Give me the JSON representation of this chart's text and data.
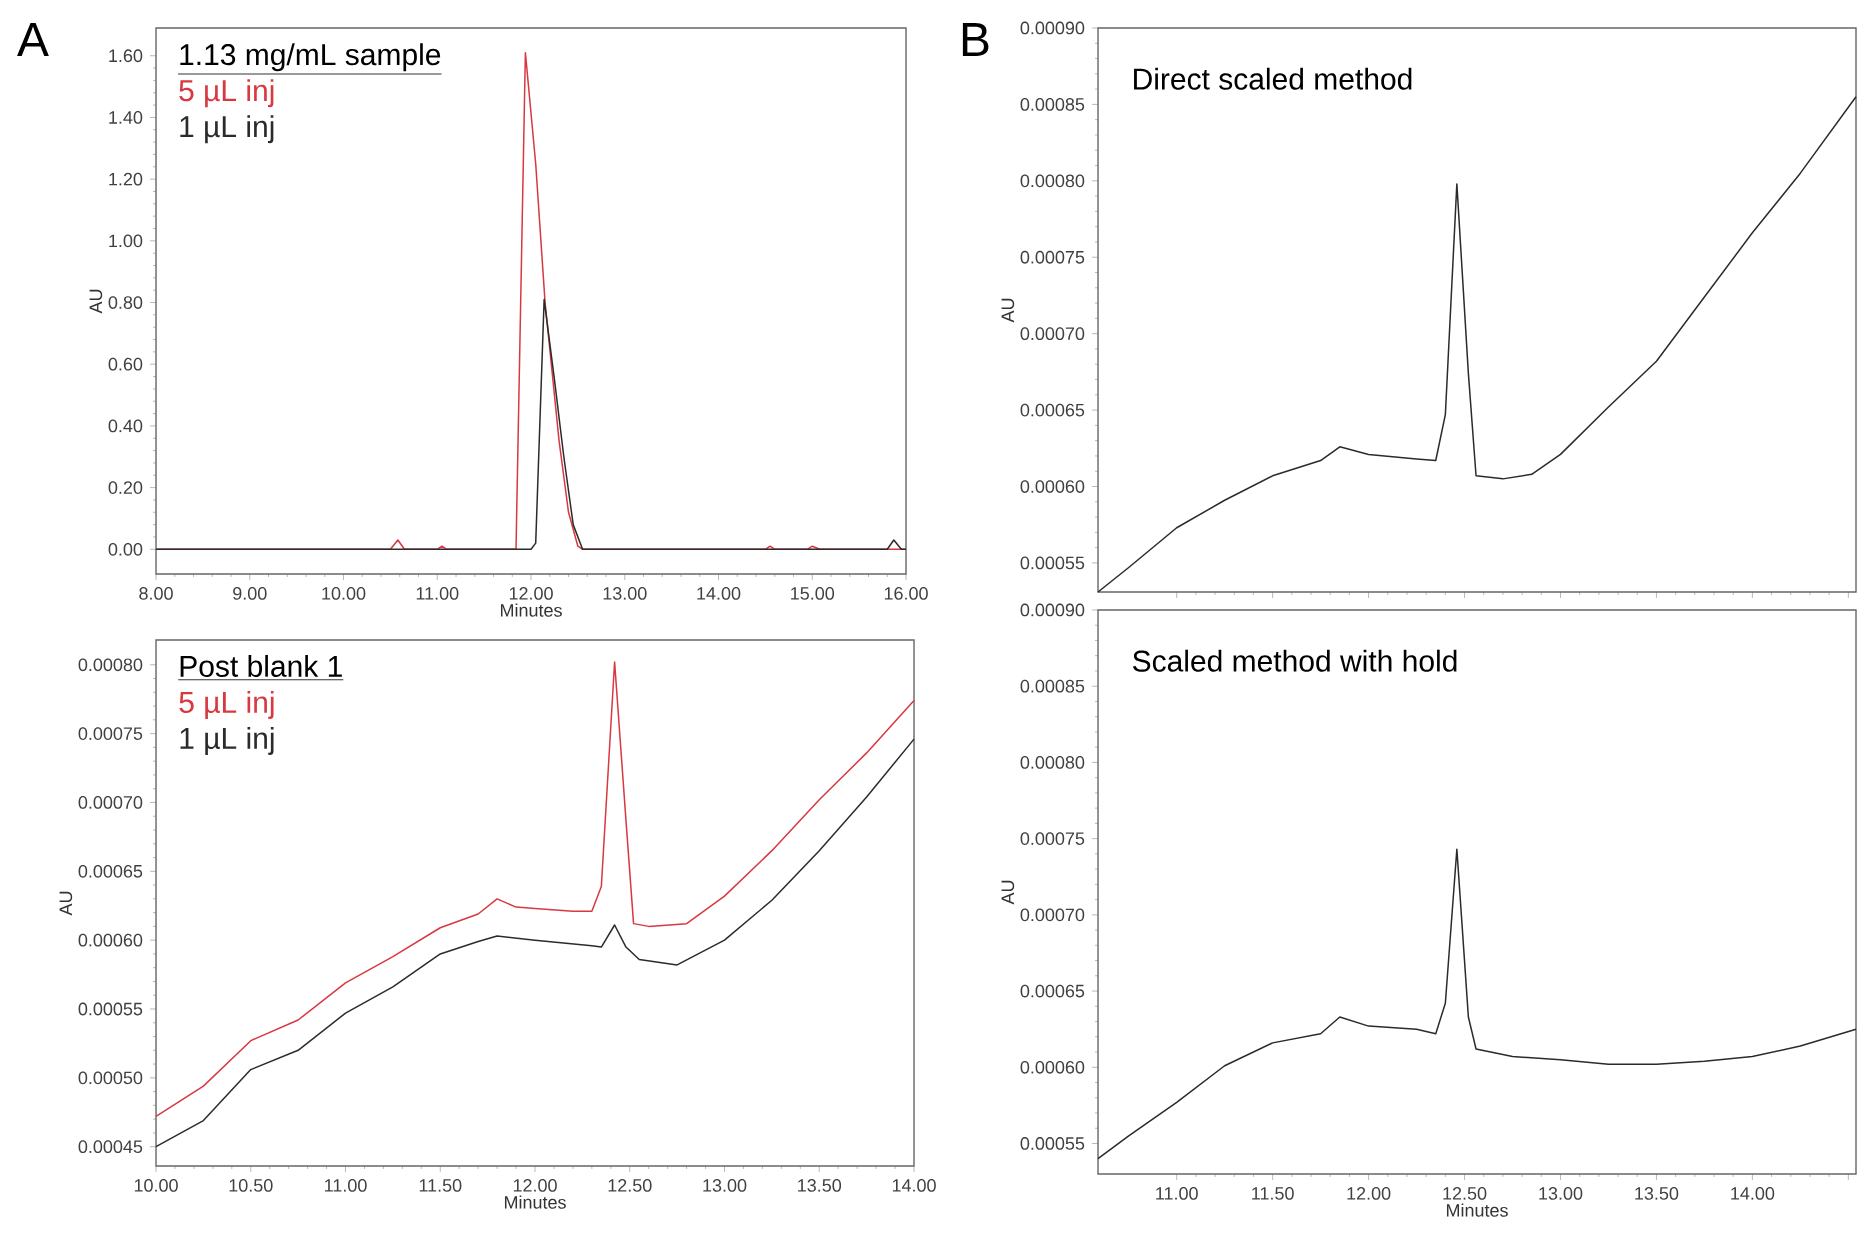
{
  "chart_data": [
    {
      "type": "line",
      "ylabel": "AU",
      "xlabel": "Minutes",
      "legend_title": "1.13 mg/mL sample",
      "annotations": [
        "A"
      ],
      "xlim": [
        8,
        16
      ],
      "ylim": [
        -0.08,
        1.69
      ],
      "xticks": [
        {
          "value": 8,
          "label": "8.00"
        },
        {
          "value": 9,
          "label": "9.00"
        },
        {
          "value": 10,
          "label": "10.00"
        },
        {
          "value": 11,
          "label": "11.00"
        },
        {
          "value": 12,
          "label": "12.00"
        },
        {
          "value": 13,
          "label": "13.00"
        },
        {
          "value": 14,
          "label": "14.00"
        },
        {
          "value": 15,
          "label": "15.00"
        },
        {
          "value": 16,
          "label": "16.00"
        }
      ],
      "yticks": [
        {
          "value": 0,
          "label": "0.00"
        },
        {
          "value": 0.2,
          "label": "0.20"
        },
        {
          "value": 0.4,
          "label": "0.40"
        },
        {
          "value": 0.6,
          "label": "0.60"
        },
        {
          "value": 0.8,
          "label": "0.80"
        },
        {
          "value": 1.0,
          "label": "1.00"
        },
        {
          "value": 1.2,
          "label": "1.20"
        },
        {
          "value": 1.4,
          "label": "1.40"
        },
        {
          "value": 1.6,
          "label": "1.60"
        }
      ],
      "series": [
        {
          "name": "5 µL inj",
          "color": "#d8383f",
          "x": [
            8,
            10.5,
            10.58,
            10.65,
            11.0,
            11.05,
            11.1,
            11.84,
            11.94,
            12.05,
            12.15,
            12.3,
            12.4,
            12.5,
            12.55,
            14.5,
            14.55,
            14.6,
            14.95,
            15.0,
            15.08,
            16
          ],
          "values": [
            0,
            0,
            0.03,
            0,
            0,
            0.01,
            0,
            0,
            1.61,
            1.25,
            0.8,
            0.35,
            0.12,
            0.01,
            0,
            0,
            0.01,
            0,
            0,
            0.01,
            0,
            0
          ]
        },
        {
          "name": "1 µL inj",
          "color": "#2b2b2b",
          "x": [
            8,
            12.0,
            12.05,
            12.14,
            12.25,
            12.35,
            12.45,
            12.55,
            15.8,
            15.87,
            15.95,
            16
          ],
          "values": [
            0,
            0,
            0.02,
            0.81,
            0.55,
            0.3,
            0.08,
            0,
            0,
            0.03,
            0,
            0
          ]
        }
      ]
    },
    {
      "type": "line",
      "title": "Direct scaled method",
      "ylabel": "AU",
      "annotations": [
        "B"
      ],
      "tick_labels": "y",
      "xlim": [
        10.59,
        14.54
      ],
      "ylim": [
        0.000531,
        0.0009
      ],
      "xticks": [
        11,
        11.5,
        12,
        12.5,
        13,
        13.5,
        14,
        14.5
      ],
      "yticks": [
        {
          "value": 0.00055,
          "label": "0.00055"
        },
        {
          "value": 0.0006,
          "label": "0.00060"
        },
        {
          "value": 0.00065,
          "label": "0.00065"
        },
        {
          "value": 0.0007,
          "label": "0.00070"
        },
        {
          "value": 0.00075,
          "label": "0.00075"
        },
        {
          "value": 0.0008,
          "label": "0.00080"
        },
        {
          "value": 0.00085,
          "label": "0.00085"
        },
        {
          "value": 0.0009,
          "label": "0.00090"
        }
      ],
      "series": [
        {
          "color": "#2b2b2b",
          "x": [
            10.59,
            10.75,
            11.0,
            11.25,
            11.5,
            11.75,
            11.85,
            12.0,
            12.25,
            12.35,
            12.4,
            12.46,
            12.52,
            12.56,
            12.7,
            12.85,
            13.0,
            13.25,
            13.5,
            13.75,
            14.0,
            14.25,
            14.54
          ],
          "values": [
            0.000531,
            0.000547,
            0.000573,
            0.000591,
            0.000607,
            0.000617,
            0.000626,
            0.000621,
            0.000618,
            0.000617,
            0.000647,
            0.000798,
            0.000674,
            0.000607,
            0.000605,
            0.000608,
            0.000621,
            0.000652,
            0.000682,
            0.000724,
            0.000766,
            0.000805,
            0.000855
          ]
        }
      ]
    },
    {
      "type": "line",
      "ylabel": "AU",
      "xlabel": "Minutes",
      "legend_title": "Post blank 1",
      "xlim": [
        10,
        14
      ],
      "ylim": [
        0.000436,
        0.000818
      ],
      "xticks": [
        {
          "value": 10,
          "label": "10.00"
        },
        {
          "value": 10.5,
          "label": "10.50"
        },
        {
          "value": 11,
          "label": "11.00"
        },
        {
          "value": 11.5,
          "label": "11.50"
        },
        {
          "value": 12,
          "label": "12.00"
        },
        {
          "value": 12.5,
          "label": "12.50"
        },
        {
          "value": 13,
          "label": "13.00"
        },
        {
          "value": 13.5,
          "label": "13.50"
        },
        {
          "value": 14,
          "label": "14.00"
        }
      ],
      "yticks": [
        {
          "value": 0.00045,
          "label": "0.00045"
        },
        {
          "value": 0.0005,
          "label": "0.00050"
        },
        {
          "value": 0.00055,
          "label": "0.00055"
        },
        {
          "value": 0.0006,
          "label": "0.00060"
        },
        {
          "value": 0.00065,
          "label": "0.00065"
        },
        {
          "value": 0.0007,
          "label": "0.00070"
        },
        {
          "value": 0.00075,
          "label": "0.00075"
        },
        {
          "value": 0.0008,
          "label": "0.00080"
        }
      ],
      "series": [
        {
          "name": "5 µL inj",
          "color": "#d8383f",
          "x": [
            10.0,
            10.25,
            10.5,
            10.75,
            11.0,
            11.25,
            11.5,
            11.7,
            11.8,
            11.9,
            12.0,
            12.2,
            12.3,
            12.35,
            12.42,
            12.48,
            12.52,
            12.6,
            12.8,
            13.0,
            13.25,
            13.5,
            13.75,
            14.0
          ],
          "values": [
            0.000472,
            0.000494,
            0.000527,
            0.000542,
            0.000569,
            0.000588,
            0.000609,
            0.000619,
            0.00063,
            0.000624,
            0.000623,
            0.000621,
            0.000621,
            0.000639,
            0.000802,
            0.000687,
            0.000612,
            0.00061,
            0.000612,
            0.000632,
            0.000665,
            0.000702,
            0.000736,
            0.000774
          ]
        },
        {
          "name": "1 µL inj",
          "color": "#2b2b2b",
          "x": [
            10.0,
            10.25,
            10.5,
            10.75,
            11.0,
            11.25,
            11.5,
            11.7,
            11.8,
            12.0,
            12.3,
            12.35,
            12.42,
            12.48,
            12.55,
            12.75,
            13.0,
            13.25,
            13.5,
            13.75,
            14.0
          ],
          "values": [
            0.00045,
            0.000469,
            0.000506,
            0.00052,
            0.000547,
            0.000566,
            0.00059,
            0.000599,
            0.000603,
            0.0006,
            0.000596,
            0.000595,
            0.000611,
            0.000595,
            0.000586,
            0.000582,
            0.0006,
            0.000629,
            0.000665,
            0.000704,
            0.000746
          ]
        }
      ]
    },
    {
      "type": "line",
      "title": "Scaled method with hold",
      "ylabel": "AU",
      "xlabel": "Minutes",
      "xlim": [
        10.59,
        14.54
      ],
      "ylim": [
        0.00053,
        0.0009
      ],
      "xticks": [
        {
          "value": 11,
          "label": "11.00"
        },
        {
          "value": 11.5,
          "label": "11.50"
        },
        {
          "value": 12,
          "label": "12.00"
        },
        {
          "value": 12.5,
          "label": "12.50"
        },
        {
          "value": 13,
          "label": "13.00"
        },
        {
          "value": 13.5,
          "label": "13.50"
        },
        {
          "value": 14,
          "label": "14.00"
        },
        {
          "value": 14.5,
          "label": null
        }
      ],
      "yticks": [
        {
          "value": 0.00055,
          "label": "0.00055"
        },
        {
          "value": 0.0006,
          "label": "0.00060"
        },
        {
          "value": 0.00065,
          "label": "0.00065"
        },
        {
          "value": 0.0007,
          "label": "0.00070"
        },
        {
          "value": 0.00075,
          "label": "0.00075"
        },
        {
          "value": 0.0008,
          "label": "0.00080"
        },
        {
          "value": 0.00085,
          "label": "0.00085"
        },
        {
          "value": 0.0009,
          "label": "0.00090"
        }
      ],
      "series": [
        {
          "color": "#2b2b2b",
          "x": [
            10.59,
            10.75,
            11.0,
            11.25,
            11.5,
            11.75,
            11.85,
            12.0,
            12.25,
            12.35,
            12.4,
            12.46,
            12.52,
            12.56,
            12.75,
            13.0,
            13.25,
            13.5,
            13.75,
            14.0,
            14.25,
            14.54
          ],
          "values": [
            0.00054,
            0.000555,
            0.000577,
            0.000601,
            0.000616,
            0.000622,
            0.000633,
            0.000627,
            0.000625,
            0.000622,
            0.000642,
            0.000743,
            0.000633,
            0.000612,
            0.000607,
            0.000605,
            0.000602,
            0.000602,
            0.000604,
            0.000607,
            0.000614,
            0.000625
          ]
        }
      ]
    }
  ]
}
